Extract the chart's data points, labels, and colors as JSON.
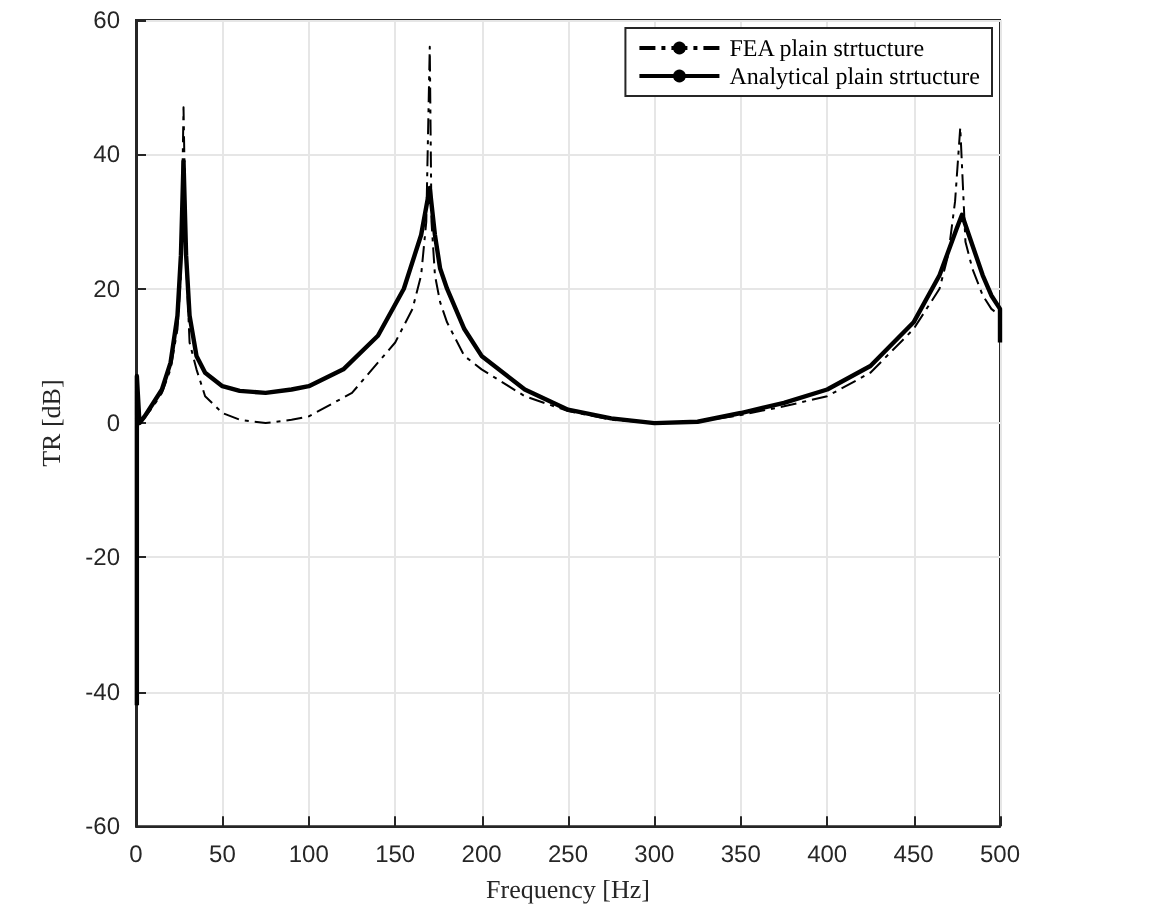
{
  "chart_data": {
    "type": "line",
    "xlabel": "Frequency [Hz]",
    "ylabel": "TR [dB]",
    "xlim": [
      0,
      500
    ],
    "xticks": [
      0,
      50,
      100,
      150,
      200,
      250,
      300,
      350,
      400,
      450,
      500
    ],
    "ylim": [
      -60,
      60
    ],
    "yticks": [
      -60,
      -40,
      -20,
      0,
      20,
      40,
      60
    ],
    "grid": true,
    "legend": "top right",
    "marker": "none",
    "series": [
      {
        "name": "FEA plain strtucture",
        "color": "#000000",
        "line_style": "dashed",
        "x": [
          0.5,
          0.5,
          2,
          5,
          10,
          15,
          20,
          24,
          26,
          27.5,
          29,
          31,
          35,
          40,
          50,
          60,
          75,
          90,
          100,
          125,
          150,
          160,
          165,
          168,
          170,
          171,
          173,
          176,
          180,
          190,
          200,
          225,
          250,
          275,
          300,
          325,
          350,
          375,
          400,
          425,
          450,
          465,
          470,
          474,
          477,
          480,
          484,
          490,
          495,
          500
        ],
        "values": [
          -42,
          5,
          0,
          0.8,
          2.5,
          4.5,
          8,
          14,
          22,
          47,
          24,
          12,
          8,
          4,
          1.5,
          0.5,
          0,
          0.5,
          1,
          4.5,
          12,
          17,
          22,
          30,
          56,
          30,
          22,
          18,
          15,
          10,
          8,
          4,
          1.8,
          0.5,
          0,
          0.2,
          1.2,
          2.5,
          4,
          7.5,
          14,
          20,
          25,
          33,
          44,
          27,
          23,
          19,
          17,
          16
        ]
      },
      {
        "name": "Analytical plain strtucture",
        "color": "#000000",
        "line_style": "solid",
        "x": [
          0.5,
          0.5,
          2,
          5,
          10,
          15,
          20,
          24,
          26,
          27.5,
          29,
          31,
          35,
          40,
          50,
          60,
          75,
          90,
          100,
          120,
          140,
          155,
          165,
          170,
          173,
          176,
          180,
          190,
          200,
          225,
          250,
          275,
          300,
          325,
          350,
          375,
          400,
          425,
          450,
          465,
          475,
          478,
          482,
          490,
          495,
          500,
          500
        ],
        "values": [
          -42,
          7,
          0,
          1,
          3,
          5,
          9,
          16,
          25,
          39,
          25,
          16,
          10,
          7.5,
          5.5,
          4.8,
          4.5,
          5,
          5.5,
          8,
          13,
          20,
          28,
          35,
          28,
          23,
          20,
          14,
          10,
          5,
          2,
          0.7,
          0,
          0.2,
          1.5,
          3,
          5,
          8.5,
          15,
          22,
          29,
          31,
          28,
          22,
          19,
          17,
          12
        ]
      }
    ]
  }
}
